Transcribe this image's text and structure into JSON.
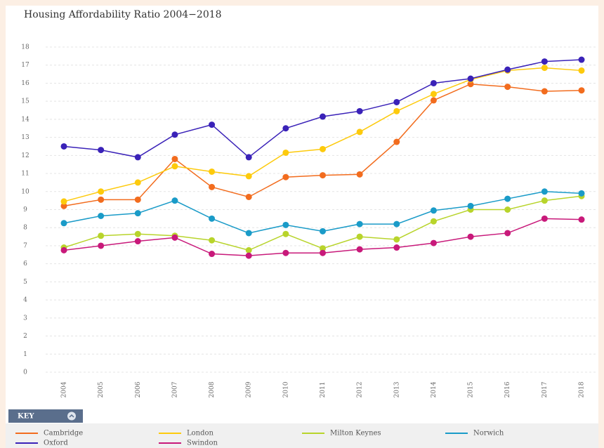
{
  "chart_data": {
    "type": "line",
    "title": "Housing Affordability Ratio 2004−2018",
    "key_label": "KEY",
    "categories": [
      "2004",
      "2005",
      "2006",
      "2007",
      "2008",
      "2009",
      "2010",
      "2011",
      "2012",
      "2013",
      "2014",
      "2015",
      "2016",
      "2017",
      "2018"
    ],
    "ylim": [
      0,
      18
    ],
    "yticks": [
      0,
      1,
      2,
      3,
      4,
      5,
      6,
      7,
      8,
      9,
      10,
      11,
      12,
      13,
      14,
      15,
      16,
      17,
      18
    ],
    "grid": true,
    "series": [
      {
        "name": "Cambridge",
        "color": "#f26c1e",
        "values": [
          9.2,
          9.55,
          9.55,
          11.8,
          10.25,
          9.7,
          10.8,
          10.9,
          10.95,
          12.75,
          15.05,
          15.95,
          15.8,
          15.55,
          15.6
        ]
      },
      {
        "name": "London",
        "color": "#fdca0c",
        "values": [
          9.45,
          10.0,
          10.5,
          11.4,
          11.1,
          10.85,
          12.15,
          12.35,
          13.3,
          14.45,
          15.4,
          16.2,
          16.7,
          16.85,
          16.7
        ]
      },
      {
        "name": "Milton Keynes",
        "color": "#b8d42b",
        "values": [
          6.9,
          7.55,
          7.65,
          7.55,
          7.3,
          6.75,
          7.65,
          6.85,
          7.5,
          7.35,
          8.35,
          9.0,
          9.0,
          9.5,
          9.75
        ]
      },
      {
        "name": "Norwich",
        "color": "#1a9bc8",
        "values": [
          8.25,
          8.65,
          8.8,
          9.5,
          8.5,
          7.7,
          8.15,
          7.8,
          8.2,
          8.2,
          8.95,
          9.2,
          9.6,
          10.0,
          9.9
        ]
      },
      {
        "name": "Oxford",
        "color": "#3a22b8",
        "values": [
          12.5,
          12.3,
          11.9,
          13.15,
          13.7,
          11.9,
          13.5,
          14.15,
          14.45,
          14.95,
          16.0,
          16.25,
          16.75,
          17.2,
          17.3
        ]
      },
      {
        "name": "Swindon",
        "color": "#c8197a",
        "values": [
          6.75,
          7.0,
          7.25,
          7.45,
          6.55,
          6.45,
          6.6,
          6.6,
          6.8,
          6.9,
          7.15,
          7.5,
          7.7,
          8.5,
          8.45
        ]
      }
    ]
  }
}
